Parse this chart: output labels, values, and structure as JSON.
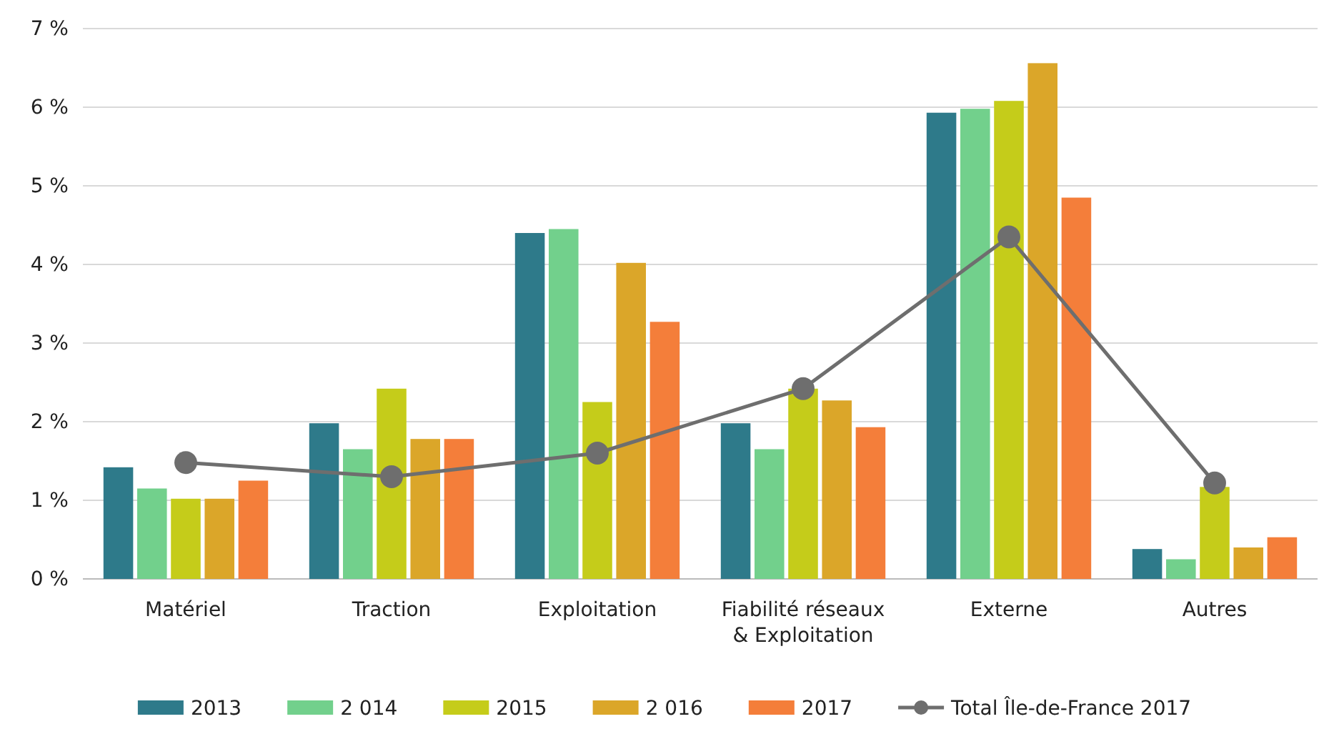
{
  "chart_data": {
    "type": "bar",
    "categories": [
      "Matériel",
      "Traction",
      "Exploitation",
      "Fiabilité réseaux & Exploitation",
      "Externe",
      "Autres"
    ],
    "series": [
      {
        "name": "2013",
        "color": "#2e7a8a",
        "values": [
          1.42,
          1.98,
          4.4,
          1.98,
          5.93,
          0.38
        ]
      },
      {
        "name": "2 014",
        "color": "#72d08c",
        "values": [
          1.15,
          1.65,
          4.45,
          1.65,
          5.98,
          0.25
        ]
      },
      {
        "name": "2015",
        "color": "#c5cc1a",
        "values": [
          1.02,
          2.42,
          2.25,
          2.42,
          6.08,
          1.17
        ]
      },
      {
        "name": "2 016",
        "color": "#dba629",
        "values": [
          1.02,
          1.78,
          4.02,
          2.27,
          6.56,
          0.4
        ]
      },
      {
        "name": "2017",
        "color": "#f47e3a",
        "values": [
          1.25,
          1.78,
          3.27,
          1.93,
          4.85,
          0.53
        ]
      },
      {
        "name": "Total Île-de-France 2017",
        "type": "line",
        "color": "#6e6e6e",
        "marker": "circle",
        "values": [
          1.48,
          1.3,
          1.6,
          2.42,
          4.35,
          1.22
        ]
      }
    ],
    "ylim": [
      0,
      7
    ],
    "yticks": [
      {
        "value": 0,
        "label": "0 %"
      },
      {
        "value": 1,
        "label": "1 %"
      },
      {
        "value": 2,
        "label": "2 %"
      },
      {
        "value": 3,
        "label": "3 %"
      },
      {
        "value": 4,
        "label": "4 %"
      },
      {
        "value": 5,
        "label": "5 %"
      },
      {
        "value": 6,
        "label": "6 %"
      },
      {
        "value": 7,
        "label": "7 %"
      }
    ],
    "grid": "y",
    "legend": "bottom"
  }
}
